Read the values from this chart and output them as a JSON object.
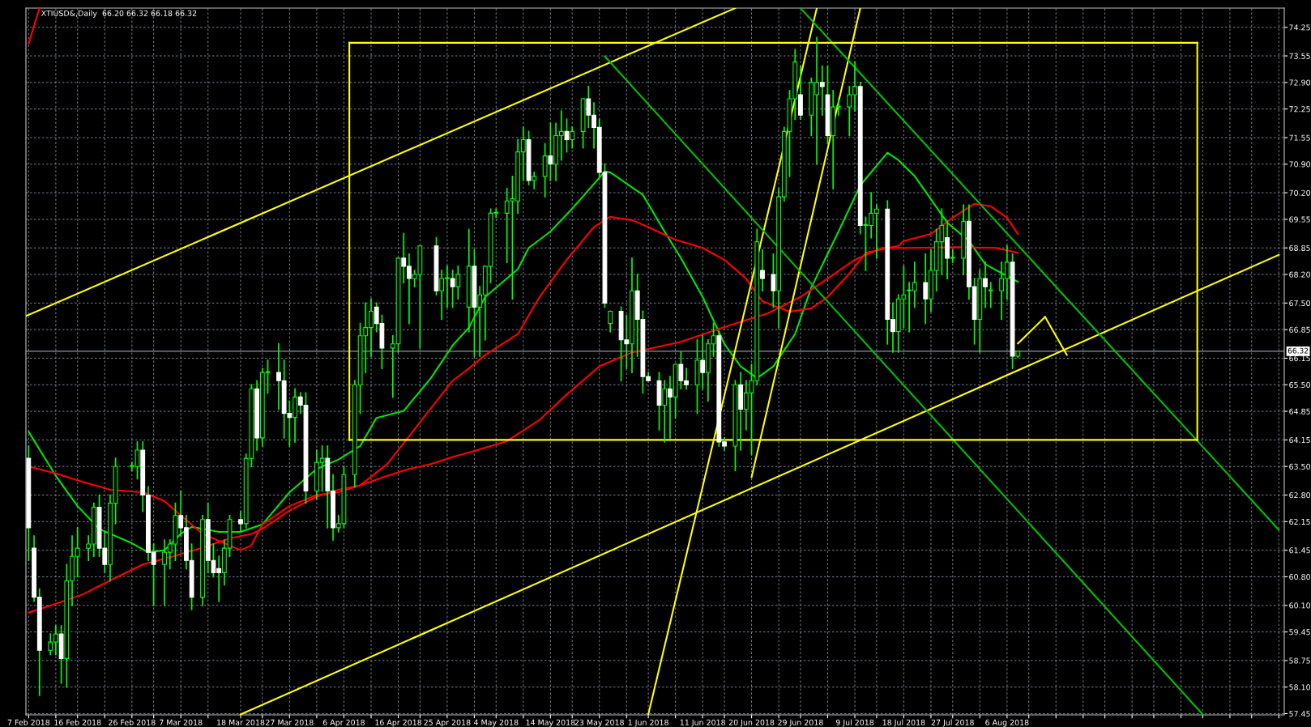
{
  "chart_data": {
    "type": "candlestick",
    "title": "XTIUSD&,Daily  66.20 66.32 66.18 66.32",
    "color": "#00ff00",
    "colors": [
      "#ffffff",
      "#ffffff",
      "#ffffff",
      "#00ff00",
      "#00ff00",
      "#ffffff",
      "#00ff00",
      "#00ff00",
      "#00ff00",
      "#00ff00",
      "#00ff00",
      "#ffffff",
      "#ffffff",
      "#00ff00",
      "#00ff00",
      "#00ff00",
      "#00ff00",
      "#ffffff",
      "#ffffff",
      "#ffffff",
      "#00ff00",
      "#00ff00",
      "#00ff00",
      "#ffffff",
      "#ffffff",
      "#ffffff",
      "#00ff00",
      "#ffffff",
      "#ffffff",
      "#ffffff",
      "#00ff00",
      "#00ff00",
      "#ffffff",
      "#00ff00",
      "#00ff00",
      "#ffffff",
      "#00ff00",
      "#00ff00",
      "#ffffff",
      "#ffffff",
      "#ffffff",
      "#00ff00",
      "#ffffff",
      "#ffffff",
      "#00ff00",
      "#00ff00",
      "#ffffff",
      "#ffffff",
      "#00ff00",
      "#00ff00",
      "#00ff00",
      "#00ff00",
      "#00ff00",
      "#00ff00",
      "#ffffff",
      "#ffffff",
      "#00ff00",
      "#00ff00",
      "#ffffff",
      "#ffffff",
      "#00ff00",
      "#00ff00",
      "#ffffff",
      "#00ff00",
      "#00ff00",
      "#ffffff",
      "#00ff00",
      "#00ff00",
      "#ffffff",
      "#00ff00",
      "#00ff00",
      "#00ff00",
      "#00ff00",
      "#00ff00",
      "#00ff00",
      "#00ff00",
      "#00ff00",
      "#ffffff",
      "#00ff00",
      "#00ff00",
      "#ffffff",
      "#00ff00",
      "#00ff00",
      "#ffffff",
      "#00ff00",
      "#00ff00",
      "#ffffff",
      "#ffffff",
      "#ffffff",
      "#ffffff",
      "#00ff00",
      "#ffffff",
      "#ffffff",
      "#00ff00",
      "#ffffff",
      "#ffffff",
      "#ffffff",
      "#ffffff",
      "#00ff00",
      "#ffffff",
      "#00ff00",
      "#ffffff",
      "#ffffff",
      "#00ff00",
      "#ffffff",
      "#00ff00",
      "#00ff00",
      "#ffffff",
      "#ffffff",
      "#00ff00",
      "#ffffff",
      "#00ff00",
      "#00ff00",
      "#00ff00",
      "#ffffff",
      "#ffffff",
      "#00ff00",
      "#00ff00",
      "#00ff00",
      "#00ff00",
      "#ffffff",
      "#00ff00",
      "#00ff00",
      "#ffffff",
      "#ffffff",
      "#00ff00",
      "#00ff00",
      "#00ff00",
      "#00ff00",
      "#ffffff",
      "#00ff00",
      "#00ff00",
      "#00ff00",
      "#ffffff",
      "#ffffff",
      "#00ff00",
      "#00ff00",
      "#00ff00",
      "#00ff00",
      "#ffffff",
      "#00ff00",
      "#00ff00",
      "#00ff00",
      "#ffffff",
      "#00ff00",
      "#00ff00",
      "#ffffff",
      "#ffffff",
      "#00ff00",
      "#ffffff",
      "#00ff00",
      "#00ff00",
      "#00ff00",
      "#ffffff",
      "#00ff00"
    ],
    "x": [
      "2018-02-07",
      "2018-02-08",
      "2018-02-09",
      "2018-02-11",
      "2018-02-12",
      "2018-02-13",
      "2018-02-14",
      "2018-02-15",
      "2018-02-16",
      "2018-02-18",
      "2018-02-19",
      "2018-02-20",
      "2018-02-21",
      "2018-02-22",
      "2018-02-23",
      "2018-02-26",
      "2018-02-27",
      "2018-02-28",
      "2018-03-01",
      "2018-03-02",
      "2018-03-04",
      "2018-03-05",
      "2018-03-06",
      "2018-03-07",
      "2018-03-08",
      "2018-03-09",
      "2018-03-11",
      "2018-03-12",
      "2018-03-13",
      "2018-03-14",
      "2018-03-15",
      "2018-03-16",
      "2018-03-18",
      "2018-03-19",
      "2018-03-20",
      "2018-03-21",
      "2018-03-22",
      "2018-03-23",
      "2018-03-25",
      "2018-03-26",
      "2018-03-27",
      "2018-03-28",
      "2018-03-29",
      "2018-03-30",
      "2018-04-01",
      "2018-04-02",
      "2018-04-03",
      "2018-04-04",
      "2018-04-05",
      "2018-04-06",
      "2018-04-08",
      "2018-04-09",
      "2018-04-10",
      "2018-04-11",
      "2018-04-12",
      "2018-04-13",
      "2018-04-15",
      "2018-04-16",
      "2018-04-17",
      "2018-04-18",
      "2018-04-19",
      "2018-04-20",
      "2018-04-23",
      "2018-04-24",
      "2018-04-25",
      "2018-04-26",
      "2018-04-27",
      "2018-04-29",
      "2018-04-30",
      "2018-05-01",
      "2018-05-02",
      "2018-05-03",
      "2018-05-04",
      "2018-05-06",
      "2018-05-07",
      "2018-05-08",
      "2018-05-09",
      "2018-05-10",
      "2018-05-11",
      "2018-05-13",
      "2018-05-14",
      "2018-05-15",
      "2018-05-16",
      "2018-05-17",
      "2018-05-18",
      "2018-05-20",
      "2018-05-21",
      "2018-05-22",
      "2018-05-23",
      "2018-05-24",
      "2018-05-25",
      "2018-05-27",
      "2018-05-28",
      "2018-05-29",
      "2018-05-30",
      "2018-05-31",
      "2018-06-01",
      "2018-06-03",
      "2018-06-04",
      "2018-06-05",
      "2018-06-06",
      "2018-06-07",
      "2018-06-08",
      "2018-06-10",
      "2018-06-11",
      "2018-06-12",
      "2018-06-13",
      "2018-06-14",
      "2018-06-15",
      "2018-06-17",
      "2018-06-18",
      "2018-06-19",
      "2018-06-20",
      "2018-06-21",
      "2018-06-22",
      "2018-06-24",
      "2018-06-25",
      "2018-06-26",
      "2018-06-27",
      "2018-06-28",
      "2018-06-29",
      "2018-07-01",
      "2018-07-02",
      "2018-07-03",
      "2018-07-04",
      "2018-07-05",
      "2018-07-06",
      "2018-07-08",
      "2018-07-09",
      "2018-07-10",
      "2018-07-11",
      "2018-07-12",
      "2018-07-13",
      "2018-07-15",
      "2018-07-16",
      "2018-07-17",
      "2018-07-18",
      "2018-07-19",
      "2018-07-20",
      "2018-07-22",
      "2018-07-23",
      "2018-07-24",
      "2018-07-25",
      "2018-07-26",
      "2018-07-27",
      "2018-07-29",
      "2018-07-30",
      "2018-07-31",
      "2018-08-01",
      "2018-08-02",
      "2018-08-03",
      "2018-08-05",
      "2018-08-06",
      "2018-08-07",
      "2018-08-08"
    ],
    "ohlc": [
      [
        63.7,
        64.0,
        61.2,
        62.0
      ],
      [
        61.5,
        61.8,
        60.2,
        60.3
      ],
      [
        60.3,
        60.5,
        57.9,
        59.0
      ],
      [
        59.0,
        59.4,
        58.9,
        59.2
      ],
      [
        59.2,
        59.6,
        58.9,
        59.4
      ],
      [
        59.4,
        59.6,
        58.2,
        58.8
      ],
      [
        58.8,
        61.1,
        58.1,
        60.7
      ],
      [
        60.7,
        61.8,
        60.1,
        61.3
      ],
      [
        61.3,
        62.0,
        60.8,
        61.5
      ],
      [
        61.5,
        61.8,
        61.2,
        61.6
      ],
      [
        61.6,
        62.6,
        61.3,
        62.5
      ],
      [
        62.5,
        62.8,
        61.3,
        61.5
      ],
      [
        61.5,
        61.9,
        60.9,
        61.1
      ],
      [
        61.1,
        62.8,
        60.7,
        62.6
      ],
      [
        62.6,
        63.7,
        62.1,
        63.5
      ],
      [
        63.5,
        63.6,
        63.4,
        63.5
      ],
      [
        63.5,
        64.1,
        63.2,
        63.9
      ],
      [
        63.9,
        64.1,
        62.4,
        62.8
      ],
      [
        62.8,
        63.0,
        61.2,
        61.4
      ],
      [
        61.4,
        61.6,
        60.1,
        61.1
      ],
      [
        61.1,
        61.7,
        60.1,
        61.4
      ],
      [
        61.4,
        61.7,
        61.0,
        61.6
      ],
      [
        61.6,
        62.6,
        61.2,
        62.3
      ],
      [
        62.3,
        62.9,
        61.8,
        62.0
      ],
      [
        62.0,
        62.3,
        61.0,
        61.2
      ],
      [
        61.2,
        61.6,
        60.0,
        60.3
      ],
      [
        60.3,
        62.3,
        60.1,
        62.2
      ],
      [
        62.2,
        62.6,
        60.9,
        61.2
      ],
      [
        61.2,
        61.6,
        60.8,
        60.9
      ],
      [
        61.0,
        61.3,
        60.2,
        60.9
      ],
      [
        60.9,
        61.7,
        60.6,
        61.5
      ],
      [
        61.5,
        62.3,
        61.3,
        62.2
      ],
      [
        62.2,
        62.4,
        61.9,
        62.1
      ],
      [
        62.1,
        63.8,
        62.0,
        63.7
      ],
      [
        63.7,
        65.5,
        63.5,
        65.4
      ],
      [
        65.4,
        65.6,
        63.9,
        64.2
      ],
      [
        64.2,
        65.9,
        64.0,
        65.8
      ],
      [
        65.8,
        66.1,
        65.3,
        65.8
      ],
      [
        65.8,
        66.5,
        64.9,
        65.6
      ],
      [
        65.6,
        66.1,
        64.2,
        64.8
      ],
      [
        64.8,
        65.1,
        64.0,
        64.7
      ],
      [
        64.7,
        65.4,
        64.1,
        65.2
      ],
      [
        65.2,
        65.3,
        64.8,
        65.0
      ],
      [
        65.0,
        65.3,
        62.6,
        62.9
      ],
      [
        62.9,
        63.9,
        62.7,
        63.6
      ],
      [
        63.6,
        64.0,
        62.9,
        63.7
      ],
      [
        63.7,
        64.0,
        62.0,
        62.9
      ],
      [
        62.9,
        63.3,
        61.7,
        62.0
      ],
      [
        62.0,
        62.3,
        61.9,
        62.1
      ],
      [
        62.1,
        63.5,
        62.0,
        63.3
      ],
      [
        63.3,
        65.6,
        63.0,
        65.5
      ],
      [
        65.5,
        67.0,
        64.8,
        66.7
      ],
      [
        66.7,
        67.5,
        65.8,
        66.9
      ],
      [
        66.9,
        67.6,
        66.2,
        67.3
      ],
      [
        67.4,
        67.5,
        66.8,
        67.0
      ],
      [
        67.0,
        67.2,
        65.9,
        66.4
      ],
      [
        66.4,
        66.7,
        65.2,
        66.5
      ],
      [
        66.5,
        68.6,
        66.3,
        68.6
      ],
      [
        68.6,
        69.2,
        68.0,
        68.4
      ],
      [
        68.4,
        68.7,
        67.0,
        68.1
      ],
      [
        68.1,
        68.3,
        67.9,
        68.2
      ],
      [
        68.2,
        68.9,
        66.4,
        68.9
      ],
      [
        68.9,
        69.1,
        67.7,
        67.8
      ],
      [
        67.8,
        68.3,
        67.1,
        68.1
      ],
      [
        68.1,
        68.4,
        67.4,
        68.1
      ],
      [
        68.1,
        68.3,
        67.4,
        67.9
      ],
      [
        67.9,
        68.4,
        67.6,
        68.2
      ],
      [
        67.4,
        69.3,
        66.8,
        68.4
      ],
      [
        68.4,
        68.8,
        66.2,
        67.4
      ],
      [
        67.4,
        67.9,
        66.2,
        67.7
      ],
      [
        67.7,
        68.4,
        66.6,
        68.4
      ],
      [
        68.4,
        69.8,
        68.0,
        69.7
      ],
      [
        69.7,
        69.8,
        69.6,
        69.7
      ],
      [
        69.7,
        70.3,
        68.5,
        70.0
      ],
      [
        70.0,
        70.6,
        67.6,
        70.05
      ],
      [
        70.0,
        71.5,
        69.7,
        71.2
      ],
      [
        71.2,
        71.8,
        70.5,
        71.5
      ],
      [
        71.5,
        71.7,
        70.4,
        70.5
      ],
      [
        70.5,
        70.7,
        70.3,
        70.6
      ],
      [
        70.6,
        71.4,
        70.1,
        71.1
      ],
      [
        71.1,
        71.9,
        70.5,
        70.9
      ],
      [
        70.9,
        71.9,
        70.5,
        71.6
      ],
      [
        71.6,
        72.2,
        71.0,
        71.7
      ],
      [
        71.7,
        72.0,
        71.2,
        71.5
      ],
      [
        71.5,
        71.8,
        71.3,
        71.7
      ],
      [
        71.7,
        72.5,
        71.3,
        72.5
      ],
      [
        72.5,
        72.8,
        71.8,
        72.1
      ],
      [
        72.1,
        72.4,
        71.3,
        71.8
      ],
      [
        71.8,
        72.0,
        70.6,
        70.7
      ],
      [
        70.7,
        70.9,
        67.4,
        67.5
      ],
      [
        67.0,
        67.3,
        66.8,
        67.3
      ],
      [
        67.3,
        67.4,
        65.6,
        66.6
      ],
      [
        66.6,
        67.2,
        65.9,
        66.5
      ],
      [
        66.5,
        68.6,
        65.8,
        67.8
      ],
      [
        67.8,
        68.2,
        66.2,
        67.1
      ],
      [
        67.1,
        67.3,
        65.3,
        65.7
      ],
      [
        65.7,
        65.8,
        65.6,
        65.6
      ],
      [
        65.6,
        65.8,
        64.4,
        65.0
      ],
      [
        65.0,
        65.6,
        64.1,
        65.4
      ],
      [
        65.4,
        65.7,
        64.2,
        65.2
      ],
      [
        65.2,
        66.0,
        64.7,
        66.0
      ],
      [
        66.0,
        66.3,
        65.4,
        65.6
      ],
      [
        65.6,
        65.9,
        65.4,
        65.5
      ],
      [
        65.5,
        66.6,
        64.8,
        66.1
      ],
      [
        66.1,
        66.7,
        65.4,
        65.8
      ],
      [
        65.8,
        66.6,
        65.1,
        66.5
      ],
      [
        66.5,
        67.0,
        66.2,
        66.7
      ],
      [
        66.7,
        66.8,
        64.0,
        64.1
      ],
      [
        64.1,
        64.2,
        63.9,
        64.0
      ],
      [
        64.0,
        65.6,
        63.4,
        65.5
      ],
      [
        65.5,
        65.8,
        63.9,
        64.9
      ],
      [
        64.9,
        65.6,
        64.4,
        65.3
      ],
      [
        65.3,
        66.0,
        63.8,
        65.6
      ],
      [
        65.6,
        69.3,
        65.5,
        69.0
      ],
      [
        68.3,
        68.8,
        67.8,
        68.1
      ],
      [
        68.2,
        68.7,
        67.4,
        67.8
      ],
      [
        67.8,
        70.3,
        66.9,
        70.1
      ],
      [
        70.1,
        71.8,
        70.0,
        71.7
      ],
      [
        71.7,
        72.7,
        70.6,
        72.5
      ],
      [
        72.5,
        73.7,
        72.0,
        73.4
      ],
      [
        72.6,
        73.3,
        72.0,
        72.1
      ],
      [
        72.1,
        73.0,
        71.6,
        72.9
      ],
      [
        72.6,
        74.0,
        70.9,
        72.9
      ],
      [
        72.9,
        73.3,
        72.1,
        72.8
      ],
      [
        72.6,
        73.3,
        71.4,
        71.6
      ],
      [
        71.6,
        72.7,
        70.3,
        72.3
      ],
      [
        72.3,
        72.5,
        72.1,
        72.3
      ],
      [
        72.3,
        72.8,
        71.6,
        72.6
      ],
      [
        72.6,
        73.4,
        72.2,
        72.8
      ],
      [
        72.8,
        72.9,
        69.2,
        69.4
      ],
      [
        69.4,
        69.6,
        68.3,
        69.4
      ],
      [
        69.4,
        70.2,
        69.1,
        69.7
      ],
      [
        69.7,
        69.9,
        68.6,
        69.8
      ],
      [
        69.8,
        70.0,
        66.5,
        67.1
      ],
      [
        67.1,
        67.5,
        66.3,
        66.8
      ],
      [
        66.8,
        67.7,
        66.3,
        67.6
      ],
      [
        67.6,
        68.4,
        66.9,
        67.7
      ],
      [
        67.8,
        68.0,
        66.8,
        67.8
      ],
      [
        67.8,
        68.5,
        67.4,
        68.0
      ],
      [
        68.0,
        68.7,
        67.0,
        67.6
      ],
      [
        67.6,
        68.8,
        67.3,
        68.3
      ],
      [
        68.3,
        69.3,
        67.8,
        69.0
      ],
      [
        69.0,
        69.8,
        68.2,
        69.4
      ],
      [
        69.1,
        69.5,
        68.1,
        68.6
      ],
      [
        68.6,
        68.8,
        68.5,
        68.6
      ],
      [
        68.6,
        69.9,
        68.2,
        69.5
      ],
      [
        69.5,
        69.9,
        67.6,
        67.9
      ],
      [
        67.9,
        68.1,
        66.5,
        67.1
      ],
      [
        67.1,
        68.3,
        66.3,
        68.1
      ],
      [
        68.1,
        68.5,
        67.4,
        67.9
      ],
      [
        67.8,
        68.0,
        67.4,
        67.8
      ],
      [
        67.8,
        68.5,
        67.1,
        68.1
      ],
      [
        68.1,
        68.9,
        67.6,
        68.5
      ],
      [
        68.5,
        68.7,
        65.9,
        66.2
      ],
      [
        66.2,
        66.32,
        66.18,
        66.32
      ]
    ],
    "series": [
      {
        "type": "line",
        "color": "#00e600",
        "x": [
          "2018-02-07",
          "2018-02-12",
          "2018-02-16",
          "2018-02-20",
          "2018-02-26",
          "2018-03-01",
          "2018-03-04",
          "2018-03-07",
          "2018-03-09",
          "2018-03-14",
          "2018-03-18",
          "2018-03-22",
          "2018-03-27",
          "2018-04-01",
          "2018-04-05",
          "2018-04-09",
          "2018-04-12",
          "2018-04-17",
          "2018-04-22",
          "2018-04-26",
          "2018-04-29",
          "2018-05-02",
          "2018-05-08",
          "2018-05-10",
          "2018-05-14",
          "2018-05-18",
          "2018-05-24",
          "2018-05-25",
          "2018-05-31",
          "2018-06-04",
          "2018-06-07",
          "2018-06-11",
          "2018-06-15",
          "2018-06-18",
          "2018-06-21",
          "2018-06-24",
          "2018-06-28",
          "2018-07-01",
          "2018-07-06",
          "2018-07-10",
          "2018-07-15",
          "2018-07-17",
          "2018-07-20",
          "2018-07-23",
          "2018-07-26",
          "2018-07-30",
          "2018-08-02",
          "2018-08-06",
          "2018-08-08"
        ],
        "values": [
          64.35,
          63.27,
          62.53,
          61.97,
          61.62,
          61.4,
          61.45,
          61.85,
          62.02,
          61.9,
          61.9,
          62.08,
          62.87,
          63.44,
          63.67,
          64.0,
          64.69,
          64.86,
          65.66,
          66.46,
          66.9,
          67.65,
          68.33,
          68.85,
          69.25,
          69.81,
          70.72,
          70.7,
          70.15,
          69.25,
          68.6,
          67.65,
          66.5,
          65.95,
          65.66,
          65.95,
          66.74,
          67.88,
          69.25,
          70.38,
          71.18,
          71.0,
          70.61,
          70.04,
          69.47,
          69.02,
          68.45,
          68.16,
          68.02
        ]
      },
      {
        "type": "line",
        "color": "#ff0000",
        "x": [
          "2018-02-07",
          "2018-02-12",
          "2018-02-16",
          "2018-02-22",
          "2018-02-28",
          "2018-03-04",
          "2018-03-07",
          "2018-03-11",
          "2018-03-18",
          "2018-03-20",
          "2018-03-22",
          "2018-03-27",
          "2018-04-01",
          "2018-04-05",
          "2018-04-09",
          "2018-04-14",
          "2018-04-18",
          "2018-04-22",
          "2018-04-26",
          "2018-04-29",
          "2018-05-02",
          "2018-05-08",
          "2018-05-12",
          "2018-05-17",
          "2018-05-22",
          "2018-05-25",
          "2018-05-29",
          "2018-06-01",
          "2018-06-06",
          "2018-06-11",
          "2018-06-15",
          "2018-06-19",
          "2018-06-22",
          "2018-06-27",
          "2018-07-01",
          "2018-07-04",
          "2018-07-08",
          "2018-07-11",
          "2018-07-17",
          "2018-07-18",
          "2018-07-23",
          "2018-07-27",
          "2018-07-31",
          "2018-08-03",
          "2018-08-06",
          "2018-08-08"
        ],
        "values": [
          63.5,
          63.33,
          63.16,
          62.93,
          62.87,
          62.65,
          62.3,
          61.85,
          61.45,
          61.57,
          62.08,
          62.53,
          62.8,
          62.87,
          63.04,
          63.56,
          64.24,
          64.92,
          65.6,
          65.9,
          66.23,
          66.74,
          67.65,
          68.56,
          69.36,
          69.61,
          69.53,
          69.36,
          69.05,
          68.85,
          68.56,
          68.1,
          67.54,
          67.29,
          67.37,
          67.65,
          68.22,
          68.73,
          68.9,
          69.02,
          69.19,
          69.59,
          69.93,
          69.87,
          69.59,
          69.19
        ]
      },
      {
        "type": "line",
        "color": "#ff0000",
        "x": [
          "2018-02-07",
          "2018-02-12",
          "2018-02-17",
          "2018-02-22",
          "2018-02-28",
          "2018-03-05",
          "2018-03-11",
          "2018-03-16",
          "2018-03-20",
          "2018-03-22",
          "2018-03-27",
          "2018-04-01",
          "2018-04-05",
          "2018-04-09",
          "2018-04-14",
          "2018-04-18",
          "2018-04-22",
          "2018-04-26",
          "2018-04-29",
          "2018-05-06",
          "2018-05-12",
          "2018-05-17",
          "2018-05-23",
          "2018-05-29",
          "2018-06-07",
          "2018-06-15",
          "2018-06-23",
          "2018-06-29",
          "2018-07-04",
          "2018-07-09",
          "2018-07-14",
          "2018-07-19",
          "2018-07-28",
          "2018-08-04",
          "2018-08-08"
        ],
        "values": [
          59.92,
          60.14,
          60.37,
          60.71,
          61.1,
          61.28,
          61.51,
          61.74,
          61.85,
          61.97,
          62.42,
          62.76,
          62.93,
          63.04,
          63.27,
          63.44,
          63.56,
          63.73,
          63.84,
          64.12,
          64.64,
          65.26,
          65.95,
          66.29,
          66.55,
          66.91,
          67.25,
          67.65,
          68.1,
          68.56,
          68.85,
          68.85,
          68.87,
          68.85,
          68.73
        ]
      },
      {
        "type": "line",
        "color": "#ff0000",
        "x": [
          "2018-02-07",
          "2018-02-09"
        ],
        "values": [
          73.85,
          74.72
        ]
      },
      {
        "type": "line",
        "color": "#ffff00",
        "x": [
          "2018-02-06T12:00",
          "2018-06-17"
        ],
        "values": [
          67.18,
          74.72
        ]
      },
      {
        "type": "line",
        "color": "#ffff00",
        "x": [
          "2018-03-18",
          "2018-09-25"
        ],
        "values": [
          57.43,
          68.68
        ]
      },
      {
        "type": "line",
        "color": "#ffff00",
        "x": [
          "2018-06-01",
          "2018-07-02"
        ],
        "values": [
          57.43,
          74.72
        ]
      },
      {
        "type": "line",
        "color": "#ffff00",
        "x": [
          "2018-06-20",
          "2018-07-10"
        ],
        "values": [
          63.24,
          74.72
        ]
      },
      {
        "type": "line",
        "color": "#00c000",
        "x": [
          "2018-06-29",
          "2018-09-25"
        ],
        "values": [
          74.72,
          61.95
        ]
      },
      {
        "type": "line",
        "color": "#00c000",
        "x": [
          "2018-05-24",
          "2018-09-11"
        ],
        "values": [
          73.54,
          57.43
        ]
      },
      {
        "type": "line",
        "color": "#ffff00",
        "x": [
          "2018-04-07",
          "2018-09-10"
        ],
        "values": [
          73.87,
          73.87
        ]
      },
      {
        "type": "line",
        "color": "#ffff00",
        "x": [
          "2018-04-07",
          "2018-09-10"
        ],
        "values": [
          64.15,
          64.15
        ]
      },
      {
        "type": "line",
        "color": "#ffff00",
        "x": [
          "2018-04-07",
          "2018-04-07"
        ],
        "values": [
          64.15,
          73.87
        ]
      },
      {
        "type": "line",
        "color": "#ffff00",
        "x": [
          "2018-09-10",
          "2018-09-10"
        ],
        "values": [
          64.15,
          73.87
        ]
      },
      {
        "type": "line",
        "color": "#ffff00",
        "x": [
          "2018-08-08",
          "2018-08-13"
        ],
        "values": [
          66.51,
          67.16
        ]
      },
      {
        "type": "line",
        "color": "#ffff00",
        "x": [
          "2018-08-13",
          "2018-08-17"
        ],
        "values": [
          67.16,
          66.23
        ]
      }
    ],
    "ref_lines": [
      {
        "axis": "y",
        "value": 66.32,
        "label": "66.32",
        "color": "#8a9aa8"
      }
    ],
    "xlim": [
      "2018-02-06T12:00",
      "2018-09-26"
    ],
    "xticks": [
      {
        "value": "2018-02-07",
        "label": "7 Feb 2018"
      },
      {
        "value": "2018-02-12",
        "label": null
      },
      {
        "value": "2018-02-16",
        "label": "16 Feb 2018"
      },
      {
        "value": "2018-02-21",
        "label": null
      },
      {
        "value": "2018-02-26",
        "label": "26 Feb 2018"
      },
      {
        "value": "2018-03-02",
        "label": null
      },
      {
        "value": "2018-03-07",
        "label": "7 Mar 2018"
      },
      {
        "value": "2018-03-12",
        "label": null
      },
      {
        "value": "2018-03-18",
        "label": "18 Mar 2018"
      },
      {
        "value": "2018-03-22",
        "label": null
      },
      {
        "value": "2018-03-27",
        "label": "27 Mar 2018"
      },
      {
        "value": "2018-04-01",
        "label": null
      },
      {
        "value": "2018-04-06",
        "label": "6 Apr 2018"
      },
      {
        "value": "2018-04-11",
        "label": null
      },
      {
        "value": "2018-04-16",
        "label": "16 Apr 2018"
      },
      {
        "value": "2018-04-20",
        "label": null
      },
      {
        "value": "2018-04-25",
        "label": "25 Apr 2018"
      },
      {
        "value": "2018-04-30",
        "label": null
      },
      {
        "value": "2018-05-04",
        "label": "4 May 2018"
      },
      {
        "value": "2018-05-09",
        "label": null
      },
      {
        "value": "2018-05-14",
        "label": "14 May 2018"
      },
      {
        "value": "2018-05-18",
        "label": null
      },
      {
        "value": "2018-05-23",
        "label": "23 May 2018"
      },
      {
        "value": "2018-05-28",
        "label": null
      },
      {
        "value": "2018-06-01",
        "label": "1 Jun 2018"
      },
      {
        "value": "2018-06-06",
        "label": null
      },
      {
        "value": "2018-06-11",
        "label": "11 Jun 2018"
      },
      {
        "value": "2018-06-15",
        "label": null
      },
      {
        "value": "2018-06-20",
        "label": "20 Jun 2018"
      },
      {
        "value": "2018-06-25",
        "label": null
      },
      {
        "value": "2018-06-29",
        "label": "29 Jun 2018"
      },
      {
        "value": "2018-07-04",
        "label": null
      },
      {
        "value": "2018-07-09",
        "label": "9 Jul 2018"
      },
      {
        "value": "2018-07-13",
        "label": null
      },
      {
        "value": "2018-07-18",
        "label": "18 Jul 2018"
      },
      {
        "value": "2018-07-23",
        "label": null
      },
      {
        "value": "2018-07-27",
        "label": "27 Jul 2018"
      },
      {
        "value": "2018-08-01",
        "label": null
      },
      {
        "value": "2018-08-06",
        "label": "6 Aug 2018"
      },
      {
        "value": "2018-08-10",
        "label": null
      },
      {
        "value": "2018-08-15",
        "label": null
      },
      {
        "value": "2018-08-20",
        "label": null
      },
      {
        "value": "2018-08-24",
        "label": null
      },
      {
        "value": "2018-08-29",
        "label": null
      },
      {
        "value": "2018-09-02",
        "label": null
      },
      {
        "value": "2018-09-07",
        "label": null
      },
      {
        "value": "2018-09-11",
        "label": null
      },
      {
        "value": "2018-09-16",
        "label": null
      },
      {
        "value": "2018-09-20",
        "label": null
      },
      {
        "value": "2018-09-25",
        "label": null
      }
    ],
    "ylim": [
      57.42,
      74.72
    ],
    "yticks": [
      57.45,
      {
        "value": 58.1,
        "label": "58.10"
      },
      58.75,
      59.45,
      {
        "value": 60.1,
        "label": "60.10"
      },
      {
        "value": 60.8,
        "label": "60.80"
      },
      61.45,
      62.15,
      {
        "value": 62.8,
        "label": "62.80"
      },
      {
        "value": 63.5,
        "label": "63.50"
      },
      64.15,
      64.85,
      {
        "value": 65.5,
        "label": "65.50"
      },
      66.15,
      66.85,
      {
        "value": 67.5,
        "label": "67.50"
      },
      {
        "value": 68.2,
        "label": "68.20"
      },
      68.85,
      69.55,
      {
        "value": 70.2,
        "label": "70.20"
      },
      {
        "value": 70.9,
        "label": "70.90"
      },
      71.55,
      72.25,
      {
        "value": 72.9,
        "label": "72.90"
      },
      73.55,
      74.25
    ],
    "grid": true
  }
}
